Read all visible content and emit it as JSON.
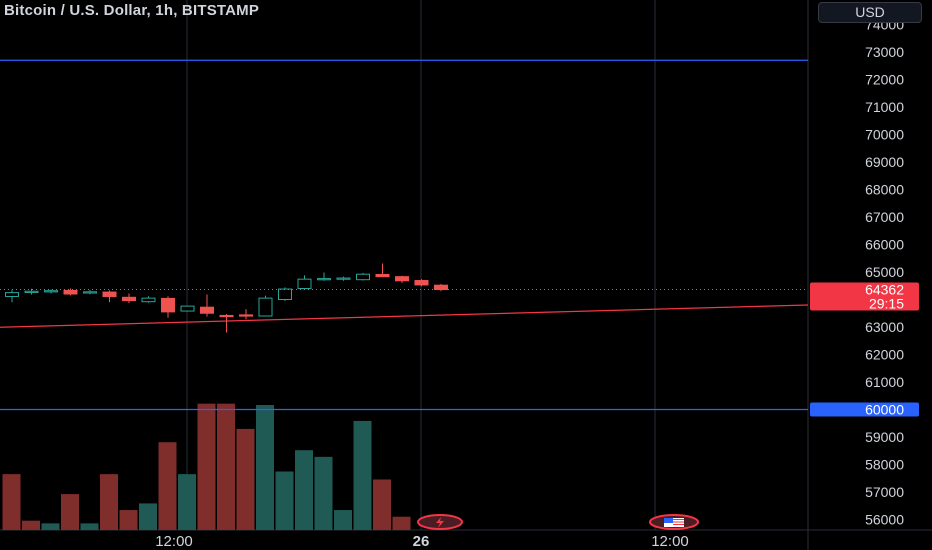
{
  "header": {
    "title": "Bitcoin / U.S. Dollar, 1h, BITSTAMP",
    "currency_button": "USD"
  },
  "price_axis": {
    "ticks": [
      "74000",
      "73000",
      "72000",
      "71000",
      "70000",
      "69000",
      "68000",
      "67000",
      "66000",
      "65000",
      "64000",
      "63000",
      "62000",
      "61000",
      "60000",
      "59000",
      "58000",
      "57000",
      "56000"
    ],
    "last_price_label": "64362",
    "countdown_label": "29:15",
    "level_label": "60000"
  },
  "time_axis": {
    "labels": [
      "12:00",
      "26",
      "12:00"
    ]
  },
  "markers": {
    "lightning_icon": "lightning-icon",
    "flag_icon": "us-flag-icon"
  },
  "colors": {
    "background": "#000000",
    "up": "#26a69a",
    "down": "#ef5350",
    "up_volume": "#1f5a54",
    "down_volume": "#7f2e2c",
    "horizontal_line": "#2962ff",
    "trendline": "#f23645",
    "grid": "#2a2e39",
    "level_label_bg": "#2962ff",
    "price_label_bg": "#f23645"
  },
  "chart_data": {
    "type": "candlestick",
    "ylim": [
      55700,
      74500
    ],
    "visible_candles": 24,
    "candles": [
      {
        "o": 64110,
        "h": 64350,
        "l": 63900,
        "c": 64250
      },
      {
        "o": 64280,
        "h": 64390,
        "l": 64180,
        "c": 64300
      },
      {
        "o": 64300,
        "h": 64360,
        "l": 64220,
        "c": 64320
      },
      {
        "o": 64330,
        "h": 64400,
        "l": 64150,
        "c": 64200
      },
      {
        "o": 64240,
        "h": 64350,
        "l": 64190,
        "c": 64280
      },
      {
        "o": 64270,
        "h": 64330,
        "l": 63900,
        "c": 64110
      },
      {
        "o": 64080,
        "h": 64220,
        "l": 63870,
        "c": 63960
      },
      {
        "o": 63920,
        "h": 64120,
        "l": 63880,
        "c": 64050
      },
      {
        "o": 64040,
        "h": 64120,
        "l": 63340,
        "c": 63550
      },
      {
        "o": 63580,
        "h": 63770,
        "l": 63560,
        "c": 63760
      },
      {
        "o": 63720,
        "h": 64180,
        "l": 63380,
        "c": 63500
      },
      {
        "o": 63420,
        "h": 63470,
        "l": 62800,
        "c": 63400
      },
      {
        "o": 63440,
        "h": 63650,
        "l": 63280,
        "c": 63420
      },
      {
        "o": 63400,
        "h": 64140,
        "l": 63390,
        "c": 64050
      },
      {
        "o": 64000,
        "h": 64440,
        "l": 63950,
        "c": 64380
      },
      {
        "o": 64400,
        "h": 64880,
        "l": 64380,
        "c": 64740
      },
      {
        "o": 64720,
        "h": 64980,
        "l": 64680,
        "c": 64760
      },
      {
        "o": 64740,
        "h": 64830,
        "l": 64680,
        "c": 64780
      },
      {
        "o": 64720,
        "h": 64970,
        "l": 64690,
        "c": 64920
      },
      {
        "o": 64910,
        "h": 65310,
        "l": 64870,
        "c": 64830
      },
      {
        "o": 64830,
        "h": 64870,
        "l": 64600,
        "c": 64680
      },
      {
        "o": 64690,
        "h": 64740,
        "l": 64480,
        "c": 64530
      },
      {
        "o": 64520,
        "h": 64570,
        "l": 64300,
        "c": 64362
      }
    ],
    "volumes": [
      {
        "v": 0.42,
        "up": false
      },
      {
        "v": 0.07,
        "up": false
      },
      {
        "v": 0.05,
        "up": true
      },
      {
        "v": 0.27,
        "up": false
      },
      {
        "v": 0.05,
        "up": true
      },
      {
        "v": 0.42,
        "up": false
      },
      {
        "v": 0.15,
        "up": false
      },
      {
        "v": 0.2,
        "up": true
      },
      {
        "v": 0.66,
        "up": false
      },
      {
        "v": 0.42,
        "up": true
      },
      {
        "v": 0.95,
        "up": false
      },
      {
        "v": 0.95,
        "up": false
      },
      {
        "v": 0.76,
        "up": false
      },
      {
        "v": 0.94,
        "up": true
      },
      {
        "v": 0.44,
        "up": true
      },
      {
        "v": 0.6,
        "up": true
      },
      {
        "v": 0.55,
        "up": true
      },
      {
        "v": 0.15,
        "up": true
      },
      {
        "v": 0.82,
        "up": true
      },
      {
        "v": 0.38,
        "up": false
      },
      {
        "v": 0.1,
        "up": false
      },
      {
        "v": 0.0,
        "up": false
      },
      {
        "v": 0.0,
        "up": false
      }
    ],
    "horizontal_levels": [
      72700,
      60000
    ],
    "trendline": {
      "start": {
        "bar": 0,
        "price": 62990
      },
      "end": {
        "bar": 42,
        "price": 63800
      }
    },
    "current_price": 64362,
    "grid": true
  }
}
